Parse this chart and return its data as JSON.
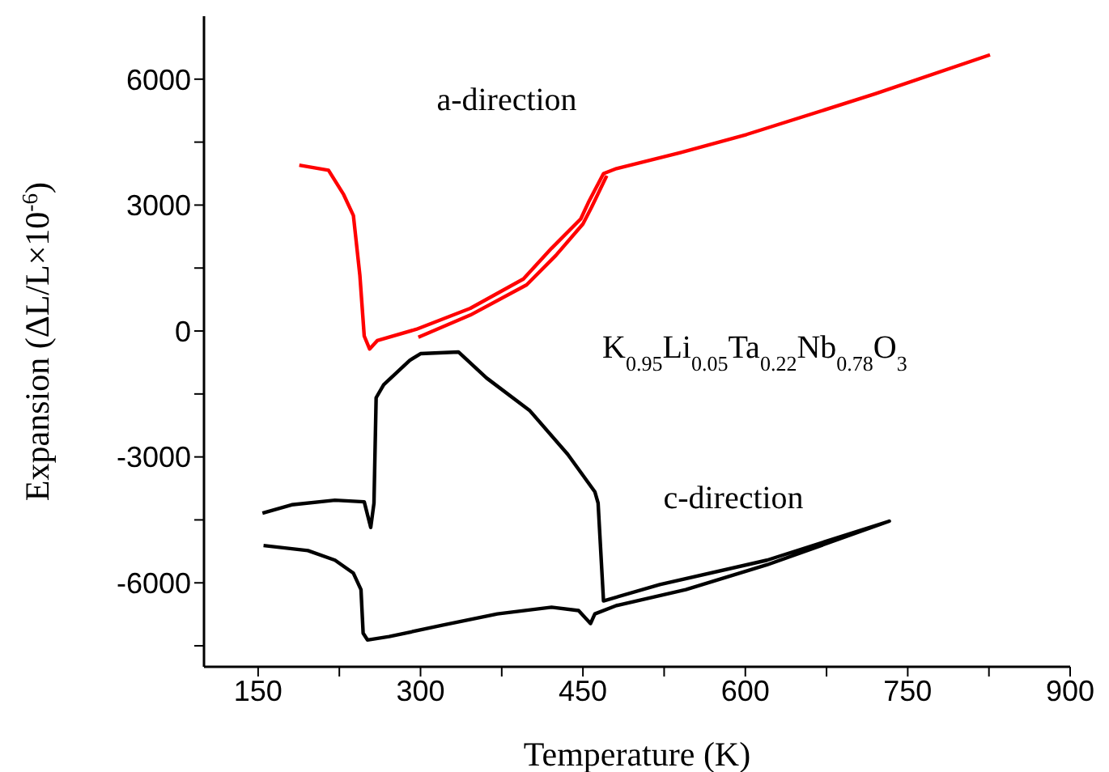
{
  "chart_data": {
    "type": "line",
    "xlabel": "Temperature (K)",
    "ylabel": "Expansion (ΔL/L×10$^{-6}$)",
    "xlim": [
      100,
      900
    ],
    "xticks": [
      150,
      {
        "value": 225,
        "label": null
      },
      300,
      {
        "value": 375,
        "label": null
      },
      450,
      {
        "value": 525,
        "label": null
      },
      600,
      {
        "value": 675,
        "label": null
      },
      750,
      {
        "value": 825,
        "label": null
      },
      900
    ],
    "ylim": [
      -8000,
      7500
    ],
    "yticks": [
      {
        "value": -7500,
        "label": null
      },
      -6000,
      {
        "value": -4500,
        "label": null
      },
      -3000,
      {
        "value": -1500,
        "label": null
      },
      0,
      {
        "value": 1500,
        "label": null
      },
      3000,
      {
        "value": 4500,
        "label": null
      },
      6000
    ],
    "marker": "none",
    "line_style": "solid",
    "annotations": [
      "K$_{0.95}$Li$_{0.05}$Ta$_{0.22}$Nb$_{0.78}$O$_{3}$"
    ],
    "series": [
      {
        "name": "a-direction",
        "color": "#ff0000",
        "x": [
          188,
          215,
          229,
          238,
          244,
          248,
          253,
          260,
          296,
          346,
          395,
          421,
          448,
          455,
          469,
          481,
          540,
          601,
          720,
          826
        ],
        "values": [
          3950,
          3830,
          3250,
          2750,
          1320,
          -120,
          -430,
          -230,
          40,
          540,
          1240,
          1970,
          2670,
          3060,
          3750,
          3870,
          4250,
          4680,
          5650,
          6580
        ]
      },
      {
        "color": "#ff0000",
        "x": [
          298,
          346,
          398,
          425,
          450,
          458,
          472
        ],
        "values": [
          -150,
          380,
          1100,
          1800,
          2550,
          2950,
          3700
        ]
      },
      {
        "name": "c-direction",
        "color": "#000000",
        "x": [
          154,
          181,
          221,
          248,
          254,
          257,
          259,
          266,
          290,
          300,
          335,
          361,
          401,
          436,
          461,
          464,
          469,
          521,
          620,
          733,
          620,
          545,
          481,
          461,
          457,
          446,
          421,
          371,
          320,
          271,
          251,
          247,
          245,
          238,
          221,
          196,
          155
        ],
        "values": [
          -4340,
          -4140,
          -4030,
          -4070,
          -4680,
          -4100,
          -1590,
          -1280,
          -700,
          -540,
          -500,
          -1120,
          -1900,
          -2940,
          -3830,
          -4100,
          -6430,
          -6040,
          -5460,
          -4530,
          -5570,
          -6160,
          -6540,
          -6740,
          -6970,
          -6660,
          -6580,
          -6740,
          -7010,
          -7280,
          -7360,
          -7200,
          -6160,
          -5770,
          -5460,
          -5230,
          -5110
        ]
      }
    ]
  }
}
